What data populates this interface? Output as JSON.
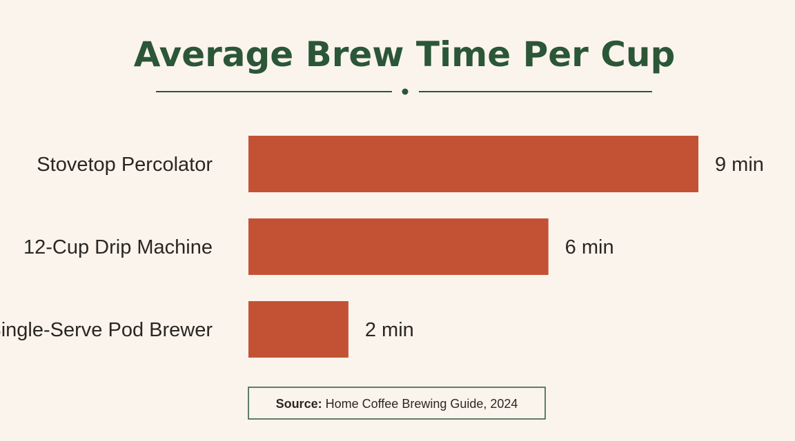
{
  "colors": {
    "background": "#faf4ec",
    "title": "#2b5637",
    "bar": "#c35235",
    "text": "#2a2622",
    "rule": "#2b5637"
  },
  "source": {
    "label": "Source:",
    "text": "Home Coffee Brewing Guide, 2024"
  },
  "chart_data": {
    "type": "bar",
    "orientation": "horizontal",
    "title": "Average Brew Time Per Cup",
    "categories": [
      "Stovetop Percolator",
      "12-Cup Drip Machine",
      "Single-Serve Pod Brewer"
    ],
    "values": [
      9,
      6,
      2
    ],
    "value_labels": [
      "9 min",
      "6 min",
      "2 min"
    ],
    "unit": "min",
    "xlim": [
      0,
      9
    ],
    "grid": false,
    "legend": "none"
  }
}
